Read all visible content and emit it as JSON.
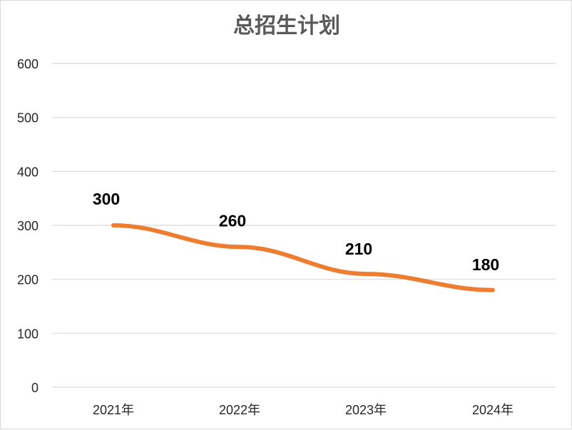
{
  "chart_data": {
    "type": "line",
    "title": "总招生计划",
    "categories": [
      "2021年",
      "2022年",
      "2023年",
      "2024年"
    ],
    "series": [
      {
        "values": [
          300,
          260,
          210,
          180
        ],
        "color": "#ED7D31",
        "labels": [
          "300",
          "260",
          "210",
          "180"
        ]
      }
    ],
    "y_ticks": [
      "0",
      "100",
      "200",
      "300",
      "400",
      "500",
      "600"
    ],
    "ylim": [
      0,
      600
    ],
    "grid": true,
    "legend": "none"
  }
}
